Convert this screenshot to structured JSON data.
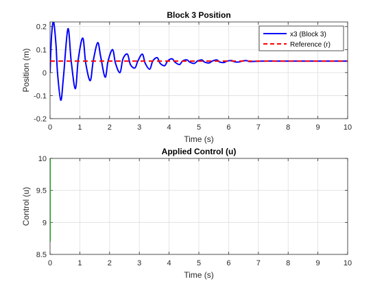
{
  "chart_data": [
    {
      "type": "line",
      "title": "Block 3 Position",
      "xlabel": "Time (s)",
      "ylabel": "Position (m)",
      "xlim": [
        0,
        10
      ],
      "ylim": [
        -0.2,
        0.22
      ],
      "xticks": [
        "0",
        "1",
        "2",
        "3",
        "4",
        "5",
        "6",
        "7",
        "8",
        "9",
        "10"
      ],
      "yticks": [
        "-0.2",
        "-0.1",
        "0",
        "0.1",
        "0.2"
      ],
      "grid": true,
      "legend": "top-right",
      "series": [
        {
          "name": "x3 (Block 3)",
          "color": "#0000ff",
          "style": "solid",
          "x": [
            0,
            0.05,
            0.12,
            0.2,
            0.25,
            0.36,
            0.45,
            0.6,
            0.71,
            0.85,
            0.95,
            1.1,
            1.2,
            1.35,
            1.45,
            1.6,
            1.7,
            1.85,
            1.95,
            2.1,
            2.2,
            2.35,
            2.45,
            2.6,
            2.7,
            2.85,
            2.95,
            3.1,
            3.2,
            3.35,
            3.45,
            3.6,
            3.7,
            3.85,
            3.95,
            4.1,
            4.2,
            4.35,
            4.45,
            4.6,
            4.7,
            4.85,
            4.95,
            5.1,
            5.2,
            5.35,
            5.45,
            5.6,
            5.7,
            5.85,
            5.95,
            6.1,
            6.2,
            6.35,
            6.45,
            6.6,
            6.7,
            6.9,
            7.2,
            7.6,
            8.0,
            8.5,
            9.0,
            9.5,
            10.0
          ],
          "values": [
            0.0,
            0.16,
            0.22,
            0.12,
            0.0,
            -0.12,
            -0.02,
            0.19,
            0.05,
            -0.07,
            0.06,
            0.15,
            0.04,
            -0.035,
            0.05,
            0.13,
            0.07,
            -0.02,
            0.05,
            0.1,
            0.04,
            0.0,
            0.06,
            0.08,
            0.035,
            0.02,
            0.05,
            0.08,
            0.04,
            0.015,
            0.05,
            0.065,
            0.04,
            0.03,
            0.05,
            0.06,
            0.045,
            0.035,
            0.05,
            0.055,
            0.045,
            0.04,
            0.05,
            0.055,
            0.045,
            0.042,
            0.05,
            0.055,
            0.046,
            0.044,
            0.05,
            0.052,
            0.047,
            0.046,
            0.05,
            0.052,
            0.048,
            0.049,
            0.05,
            0.05,
            0.05,
            0.05,
            0.05,
            0.05,
            0.05
          ]
        },
        {
          "name": "Reference (r)",
          "color": "#ff0000",
          "style": "dashed",
          "x": [
            0,
            10
          ],
          "values": [
            0.05,
            0.05
          ]
        }
      ]
    },
    {
      "type": "line",
      "title": "Applied Control (u)",
      "xlabel": "Time (s)",
      "ylabel": "Control (u)",
      "xlim": [
        0,
        10
      ],
      "ylim": [
        8.5,
        10
      ],
      "xticks": [
        "0",
        "1",
        "2",
        "3",
        "4",
        "5",
        "6",
        "7",
        "8",
        "9",
        "10"
      ],
      "yticks": [
        "8.5",
        "9",
        "9.5",
        "10"
      ],
      "grid": true,
      "series": [
        {
          "color": "#00ff00",
          "style": "solid",
          "x": [
            0,
            0,
            0.005
          ],
          "values": [
            8.7,
            10.0,
            10.0
          ]
        }
      ]
    }
  ]
}
